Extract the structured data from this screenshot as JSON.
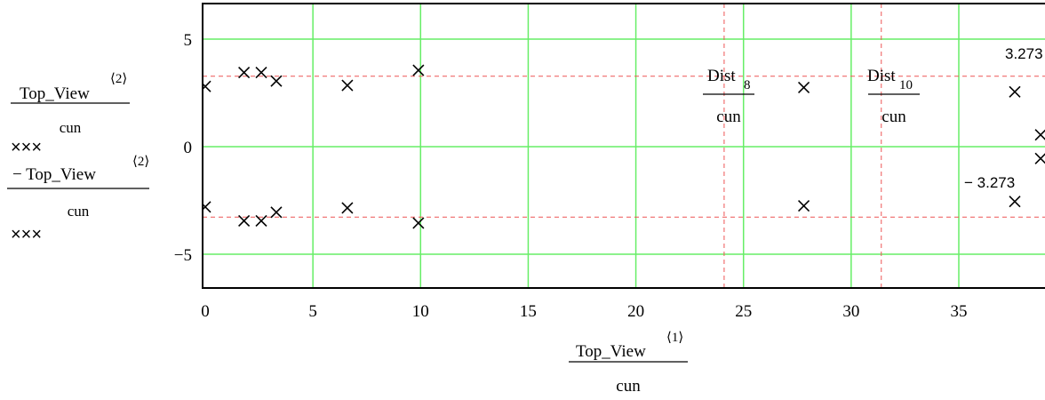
{
  "chart_data": {
    "type": "scatter",
    "xlim": [
      0,
      39
    ],
    "ylim": [
      -6.6,
      6.6
    ],
    "x_ticks": [
      0,
      5,
      10,
      15,
      20,
      25,
      30,
      35
    ],
    "y_ticks": [
      5,
      0,
      -5
    ],
    "x_tick_labels": [
      "0",
      "5",
      "10",
      "15",
      "20",
      "25",
      "30",
      "35"
    ],
    "y_tick_labels": [
      "5",
      "0",
      "−5"
    ],
    "grid": true,
    "xlabel": {
      "numerator": "Top_View",
      "superscript": "⟨1⟩",
      "denominator": "cun"
    },
    "ylabels": [
      {
        "numerator": "Top_View",
        "superscript": "⟨2⟩",
        "denominator": "cun",
        "marker": "×××"
      },
      {
        "numerator": "− Top_View",
        "superscript": "⟨2⟩",
        "denominator": "cun",
        "marker": "×××"
      }
    ],
    "series": [
      {
        "values": [
          [
            0.0,
            2.8
          ],
          [
            1.8,
            3.45
          ],
          [
            2.6,
            3.45
          ],
          [
            3.3,
            3.05
          ],
          [
            6.6,
            2.85
          ],
          [
            9.9,
            3.55
          ],
          [
            27.8,
            2.75
          ],
          [
            37.6,
            2.55
          ],
          [
            38.8,
            0.55
          ]
        ]
      },
      {
        "values": [
          [
            0.0,
            -2.8
          ],
          [
            1.8,
            -3.45
          ],
          [
            2.6,
            -3.45
          ],
          [
            3.3,
            -3.05
          ],
          [
            6.6,
            -2.85
          ],
          [
            9.9,
            -3.55
          ],
          [
            27.8,
            -2.75
          ],
          [
            37.6,
            -2.55
          ],
          [
            38.8,
            -0.55
          ]
        ]
      }
    ],
    "hlines": [
      {
        "y": 3.273,
        "label": "3.273"
      },
      {
        "y": -3.273,
        "label": "− 3.273"
      }
    ],
    "vlines": [
      {
        "x": 24.1,
        "label_main": "Dist",
        "label_sub": "8",
        "denominator": "cun"
      },
      {
        "x": 31.4,
        "label_main": "Dist",
        "label_sub": "10",
        "denominator": "cun"
      }
    ],
    "colors": {
      "grid": "#66ee66",
      "marker": "#000000",
      "markers_lines": "#ee5555",
      "frame": "#000000"
    }
  }
}
